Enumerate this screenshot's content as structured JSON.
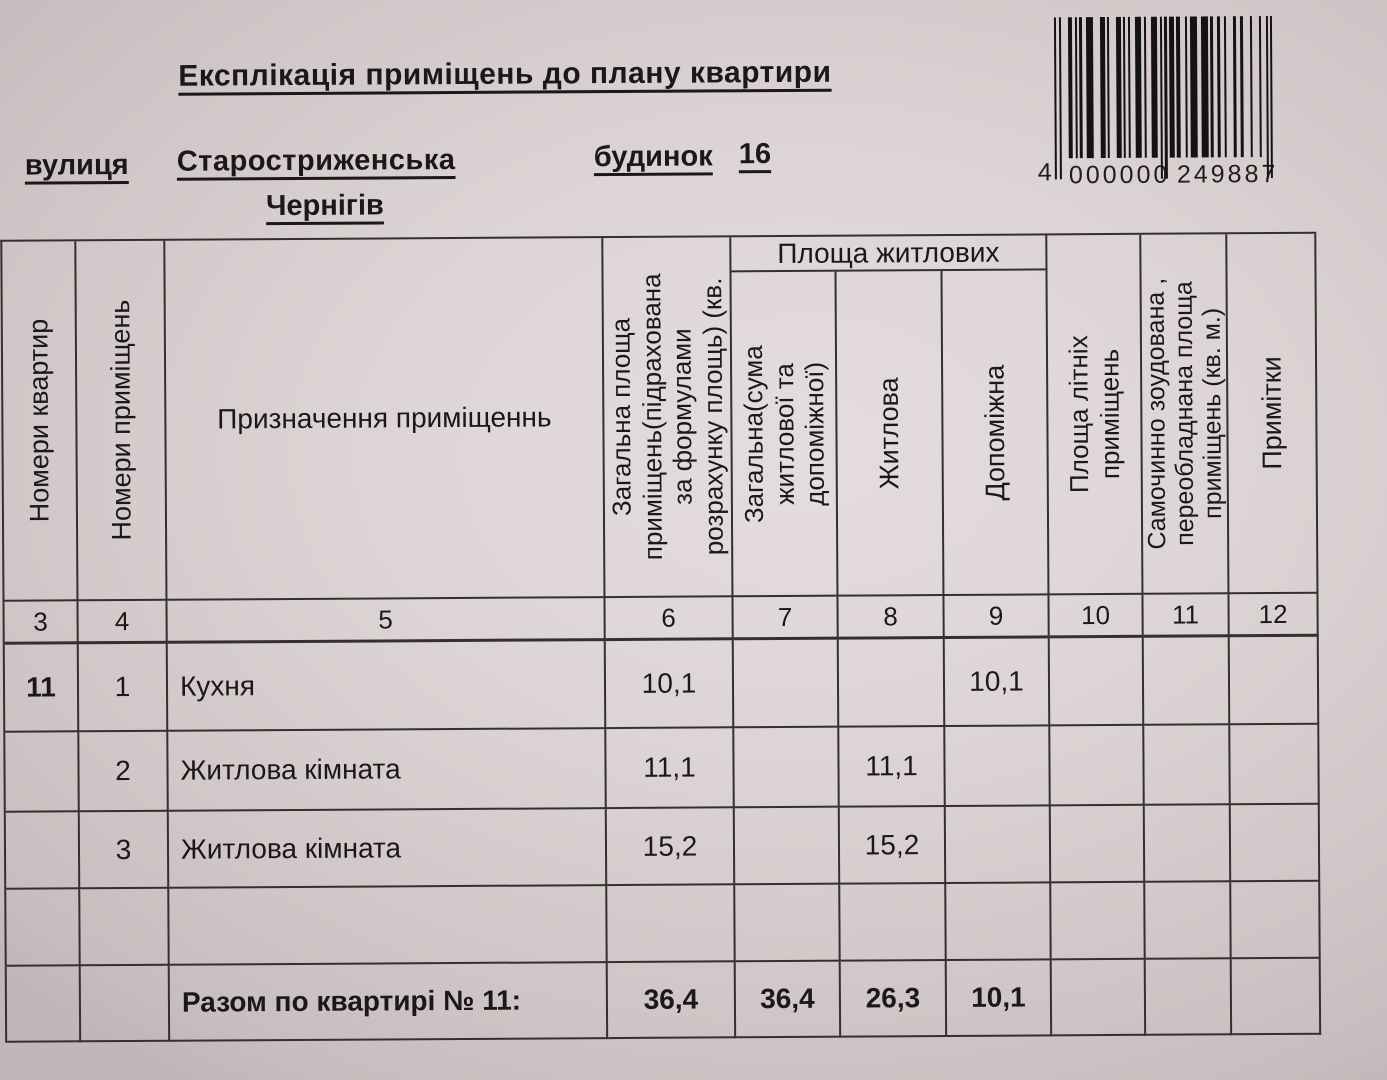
{
  "document": {
    "title": "Експлікація приміщень до плану квартири",
    "street_label": "вулиця",
    "street_name": "Старостриженська",
    "city": "Чернігів",
    "building_label": "будинок",
    "building_number": "16"
  },
  "barcode": {
    "code": "4000000249887",
    "first_digit": "4",
    "left_group": "000000",
    "right_group": "249887"
  },
  "table": {
    "area_group_header": "Площа житлових",
    "headers": {
      "apartment_numbers": "Номери квартир",
      "room_numbers": "Номери приміщень",
      "purpose": "Призначення приміщеннь",
      "total_area_lines": [
        "Загальна площа",
        "приміщень(підрахована",
        "за формулами",
        "розрахунку площь) (кв."
      ],
      "total_sum_lines": [
        "Загальна(сума",
        "житлової та",
        "допоміжної)"
      ],
      "living": "Житлова",
      "auxiliary": "Допоміжна",
      "summer_lines": [
        "Площа літніх",
        "приміщень"
      ],
      "unauthorized_lines": [
        "Самочинно зоудована ,",
        "переобладнана площа",
        "приміщень (кв. м.)"
      ],
      "notes": "Примітки"
    },
    "column_numbers": [
      "3",
      "4",
      "5",
      "6",
      "7",
      "8",
      "9",
      "10",
      "11",
      "12"
    ],
    "rows": [
      {
        "apartment": "11",
        "room": "1",
        "purpose": "Кухня",
        "total": "10,1",
        "sum": "",
        "living": "",
        "auxiliary": "10,1",
        "summer": "",
        "unauthorized": "",
        "notes": ""
      },
      {
        "apartment": "",
        "room": "2",
        "purpose": "Житлова кімната",
        "total": "11,1",
        "sum": "",
        "living": "11,1",
        "auxiliary": "",
        "summer": "",
        "unauthorized": "",
        "notes": ""
      },
      {
        "apartment": "",
        "room": "3",
        "purpose": "Житлова кімната",
        "total": "15,2",
        "sum": "",
        "living": "15,2",
        "auxiliary": "",
        "summer": "",
        "unauthorized": "",
        "notes": ""
      },
      {
        "apartment": "",
        "room": "",
        "purpose": "",
        "total": "",
        "sum": "",
        "living": "",
        "auxiliary": "",
        "summer": "",
        "unauthorized": "",
        "notes": ""
      }
    ],
    "totals_row": {
      "label": "Разом по квартирі № 11:",
      "total": "36,4",
      "sum": "36,4",
      "living": "26,3",
      "auxiliary": "10,1",
      "summer": "",
      "unauthorized": "",
      "notes": ""
    }
  }
}
